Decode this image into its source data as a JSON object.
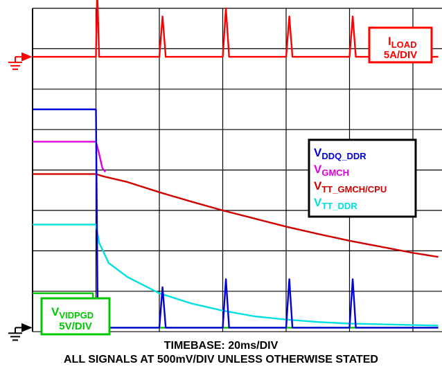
{
  "chart_data": {
    "type": "line",
    "title": "",
    "xlabel": "TIMEBASE: 20ms/DIV",
    "ylabel": "",
    "divisions": {
      "x": 10,
      "y": 8
    },
    "grid": true,
    "series": [
      {
        "name": "I_LOAD",
        "label_main": "I",
        "label_sub": "LOAD",
        "scale": "5A/DIV",
        "color": "#ff0000",
        "points": [
          [
            0,
            6.8
          ],
          [
            1.0,
            6.8
          ],
          [
            1.02,
            8.5
          ],
          [
            1.05,
            6.8
          ],
          [
            2.0,
            6.8
          ],
          [
            2.05,
            7.8
          ],
          [
            2.1,
            6.8
          ],
          [
            3.0,
            6.8
          ],
          [
            3.05,
            8.0
          ],
          [
            3.1,
            6.8
          ],
          [
            4.0,
            6.8
          ],
          [
            4.05,
            7.8
          ],
          [
            4.1,
            6.8
          ],
          [
            5.0,
            6.8
          ],
          [
            5.05,
            7.8
          ],
          [
            5.1,
            6.8
          ],
          [
            6.4,
            6.8
          ]
        ]
      },
      {
        "name": "V_DDQ_DDR",
        "label_main": "V",
        "label_sub": "DDQ_DDR",
        "color": "#0000d8",
        "points": [
          [
            0,
            5.5
          ],
          [
            1.0,
            5.5
          ],
          [
            1.03,
            0.1
          ],
          [
            2.0,
            0.1
          ],
          [
            2.05,
            1.1
          ],
          [
            2.1,
            0.1
          ],
          [
            3.0,
            0.1
          ],
          [
            3.05,
            1.3
          ],
          [
            3.1,
            0.1
          ],
          [
            4.0,
            0.1
          ],
          [
            4.05,
            1.3
          ],
          [
            4.1,
            0.1
          ],
          [
            5.0,
            0.1
          ],
          [
            5.05,
            1.3
          ],
          [
            5.1,
            0.1
          ],
          [
            6.4,
            0.1
          ]
        ]
      },
      {
        "name": "V_GMCH",
        "label_main": "V",
        "label_sub": "GMCH",
        "color": "#e000e0",
        "points": [
          [
            0,
            4.7
          ],
          [
            1.0,
            4.7
          ],
          [
            1.05,
            4.4
          ],
          [
            1.1,
            4.05
          ],
          [
            1.15,
            3.95
          ]
        ]
      },
      {
        "name": "V_TT_GMCH/CPU",
        "label_main": "V",
        "label_sub": "TT_GMCH/CPU",
        "color": "#d00000",
        "points": [
          [
            0,
            3.9
          ],
          [
            0.5,
            3.9
          ],
          [
            1.0,
            3.9
          ],
          [
            1.1,
            3.85
          ],
          [
            1.5,
            3.7
          ],
          [
            2.0,
            3.45
          ],
          [
            2.5,
            3.22
          ],
          [
            3.0,
            3.0
          ],
          [
            3.5,
            2.8
          ],
          [
            4.0,
            2.6
          ],
          [
            4.5,
            2.42
          ],
          [
            5.0,
            2.25
          ],
          [
            5.5,
            2.1
          ],
          [
            6.0,
            1.95
          ],
          [
            6.4,
            1.85
          ]
        ]
      },
      {
        "name": "V_TT_DDR",
        "label_main": "V",
        "label_sub": "TT_DDR",
        "color": "#00e0e0",
        "points": [
          [
            0,
            2.65
          ],
          [
            1.0,
            2.65
          ],
          [
            1.05,
            2.2
          ],
          [
            1.2,
            1.7
          ],
          [
            1.5,
            1.35
          ],
          [
            2.0,
            0.95
          ],
          [
            2.5,
            0.7
          ],
          [
            3.0,
            0.52
          ],
          [
            3.5,
            0.38
          ],
          [
            4.0,
            0.3
          ],
          [
            4.5,
            0.24
          ],
          [
            5.0,
            0.2
          ],
          [
            6.4,
            0.15
          ]
        ]
      },
      {
        "name": "V_VIDPGD",
        "label_main": "V",
        "label_sub": "VIDPGD",
        "scale": "5V/DIV",
        "color": "#00c800",
        "points": [
          [
            0,
            0.95
          ],
          [
            0.95,
            0.95
          ],
          [
            0.98,
            0.1
          ],
          [
            6.4,
            0.1
          ]
        ]
      }
    ],
    "zero_markers": [
      {
        "series": "I_LOAD",
        "level": 6.8,
        "color": "#ff0000"
      },
      {
        "series": "V",
        "level": 0.1,
        "color": "#000000"
      }
    ]
  },
  "footer": {
    "line1": "TIMEBASE: 20ms/DIV",
    "line2": "ALL SIGNALS AT 500mV/DIV UNLESS OTHERWISE STATED"
  },
  "legend": {
    "entries": [
      {
        "main": "V",
        "sub": "DDQ_DDR",
        "color": "#0000d8"
      },
      {
        "main": "V",
        "sub": "GMCH",
        "color": "#e000e0"
      },
      {
        "main": "V",
        "sub": "TT_GMCH/CPU",
        "color": "#d00000"
      },
      {
        "main": "V",
        "sub": "TT_DDR",
        "color": "#00e0e0"
      }
    ]
  },
  "iload_box": {
    "main": "I",
    "sub": "LOAD",
    "scale": "5A/DIV",
    "color": "#ff0000"
  },
  "vidpgd_box": {
    "main": "V",
    "sub": "VIDPGD",
    "scale": "5V/DIV",
    "color": "#00c800"
  }
}
